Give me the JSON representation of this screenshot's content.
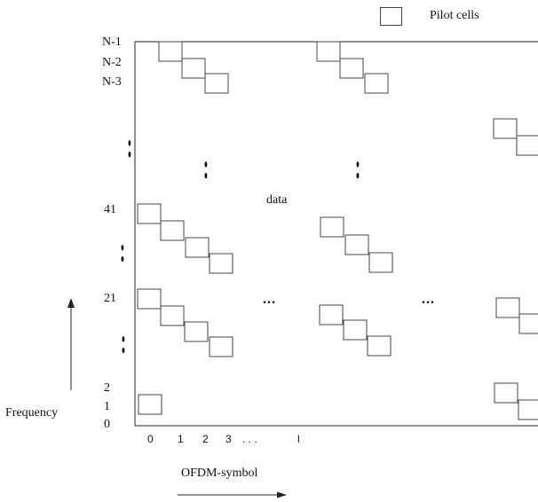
{
  "legend": {
    "label": "Pilot cells"
  },
  "y_labels": {
    "n1": "N-1",
    "n2": "N-2",
    "n3": "N-3",
    "s41": "41",
    "s21": "21",
    "s2": "2",
    "s1": "1",
    "s0": "0"
  },
  "x_ticks": {
    "t0": "0",
    "t1": "1",
    "t2": "2",
    "t3": "3",
    "dots": ". . .",
    "tl": "l"
  },
  "data_label": "data",
  "axis_labels": {
    "frequency": "Frequency",
    "ofdm_symbol": "OFDM-symbol"
  },
  "ellipsis": {
    "vertical": ":",
    "horizontal": "..."
  },
  "colors": {
    "ink": "#222222",
    "box_border": "#444444"
  }
}
